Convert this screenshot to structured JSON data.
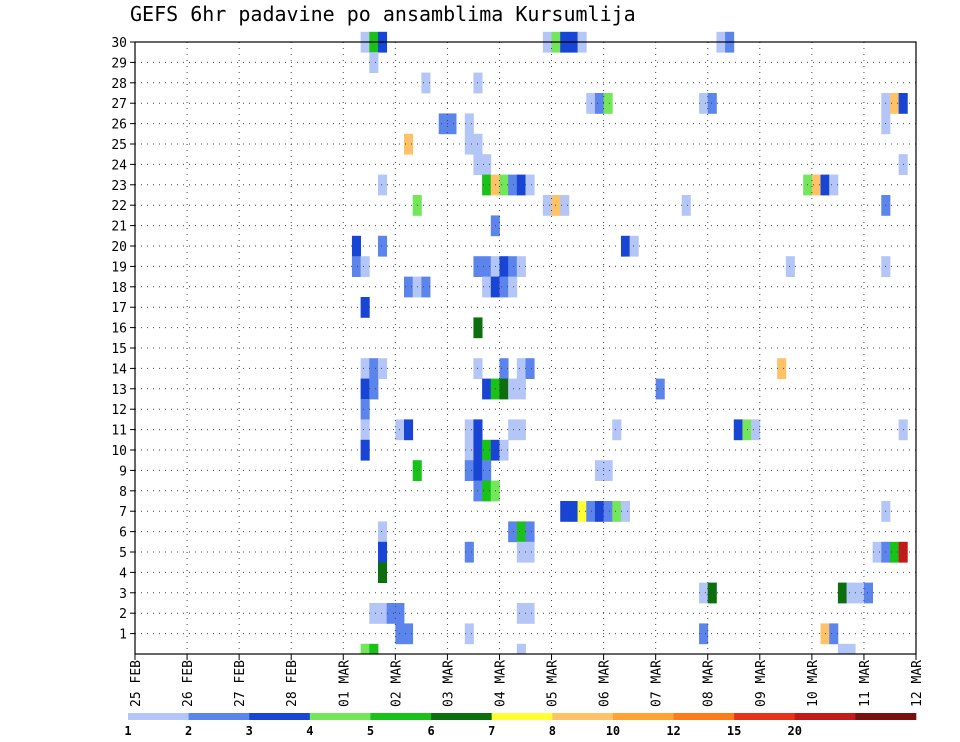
{
  "chart_data": {
    "type": "heatmap",
    "title": "GEFS 6hr padavine po ansamblima Kursumlija",
    "xlabel": "",
    "ylabel": "",
    "x_tick_labels": [
      "25 FEB",
      "26 FEB",
      "27 FEB",
      "28 FEB",
      "01 MAR",
      "02 MAR",
      "03 MAR",
      "04 MAR",
      "05 MAR",
      "06 MAR",
      "07 MAR",
      "08 MAR",
      "09 MAR",
      "10 MAR",
      "11 MAR",
      "12 MAR"
    ],
    "y_tick_labels": [
      "1",
      "2",
      "3",
      "4",
      "5",
      "6",
      "7",
      "8",
      "9",
      "10",
      "11",
      "12",
      "13",
      "14",
      "15",
      "16",
      "17",
      "18",
      "19",
      "20",
      "21",
      "22",
      "23",
      "24",
      "25",
      "26",
      "27",
      "28",
      "29",
      "30"
    ],
    "ylim": [
      0,
      30
    ],
    "grid": true,
    "legend": {
      "placement": "bottom",
      "labels": [
        "1",
        "2",
        "3",
        "4",
        "5",
        "6",
        "7",
        "8",
        "10",
        "12",
        "15",
        "20"
      ],
      "colors": [
        "#b3c6f7",
        "#5b85ec",
        "#1945d6",
        "#73e65a",
        "#19c219",
        "#0d6e0d",
        "#ffff33",
        "#ffc266",
        "#ffa333",
        "#ff7a1a",
        "#e63319",
        "#c21919",
        "#7a0f0f"
      ]
    },
    "note_units": "mm per 6h",
    "cells": [
      {
        "m": 30,
        "s": [
          [
            26,
            1
          ],
          [
            27,
            5
          ],
          [
            28,
            3
          ],
          [
            47,
            1
          ],
          [
            48,
            4
          ],
          [
            49,
            3
          ],
          [
            50,
            3
          ],
          [
            51,
            1
          ],
          [
            67,
            1
          ],
          [
            68,
            2
          ]
        ]
      },
      {
        "m": 29,
        "s": [
          [
            27,
            1
          ]
        ]
      },
      {
        "m": 28,
        "s": [
          [
            33,
            1
          ],
          [
            39,
            1
          ]
        ]
      },
      {
        "m": 27,
        "s": [
          [
            52,
            1
          ],
          [
            53,
            2
          ],
          [
            54,
            4
          ],
          [
            65,
            1
          ],
          [
            66,
            2
          ],
          [
            86,
            1
          ],
          [
            87,
            8
          ],
          [
            88,
            3
          ]
        ]
      },
      {
        "m": 26,
        "s": [
          [
            35,
            2
          ],
          [
            36,
            2
          ],
          [
            38,
            1
          ],
          [
            86,
            1
          ]
        ]
      },
      {
        "m": 25,
        "s": [
          [
            31,
            8
          ],
          [
            38,
            1
          ],
          [
            39,
            1
          ]
        ]
      },
      {
        "m": 24,
        "s": [
          [
            39,
            1
          ],
          [
            40,
            1
          ],
          [
            88,
            1
          ]
        ]
      },
      {
        "m": 23,
        "s": [
          [
            28,
            1
          ],
          [
            40,
            5
          ],
          [
            41,
            8
          ],
          [
            42,
            4
          ],
          [
            43,
            2
          ],
          [
            44,
            3
          ],
          [
            45,
            1
          ],
          [
            77,
            4
          ],
          [
            78,
            8
          ],
          [
            79,
            3
          ],
          [
            80,
            1
          ]
        ]
      },
      {
        "m": 22,
        "s": [
          [
            32,
            4
          ],
          [
            47,
            1
          ],
          [
            48,
            8
          ],
          [
            49,
            1
          ],
          [
            63,
            1
          ],
          [
            86,
            2
          ]
        ]
      },
      {
        "m": 21,
        "s": [
          [
            41,
            2
          ]
        ]
      },
      {
        "m": 20,
        "s": [
          [
            25,
            3
          ],
          [
            28,
            2
          ],
          [
            56,
            3
          ],
          [
            57,
            1
          ]
        ]
      },
      {
        "m": 19,
        "s": [
          [
            25,
            2
          ],
          [
            26,
            1
          ],
          [
            39,
            2
          ],
          [
            40,
            2
          ],
          [
            41,
            1
          ],
          [
            42,
            3
          ],
          [
            43,
            2
          ],
          [
            44,
            1
          ],
          [
            75,
            1
          ],
          [
            86,
            1
          ]
        ]
      },
      {
        "m": 18,
        "s": [
          [
            31,
            2
          ],
          [
            32,
            1
          ],
          [
            33,
            2
          ],
          [
            40,
            1
          ],
          [
            41,
            3
          ],
          [
            42,
            2
          ],
          [
            43,
            1
          ]
        ]
      },
      {
        "m": 17,
        "s": [
          [
            26,
            3
          ]
        ]
      },
      {
        "m": 16,
        "s": [
          [
            39,
            6
          ]
        ]
      },
      {
        "m": 14,
        "s": [
          [
            26,
            1
          ],
          [
            27,
            2
          ],
          [
            28,
            1
          ],
          [
            39,
            1
          ],
          [
            42,
            2
          ],
          [
            44,
            1
          ],
          [
            45,
            2
          ],
          [
            74,
            8
          ]
        ]
      },
      {
        "m": 13,
        "s": [
          [
            26,
            3
          ],
          [
            27,
            2
          ],
          [
            40,
            3
          ],
          [
            41,
            5
          ],
          [
            42,
            6
          ],
          [
            43,
            1
          ],
          [
            44,
            1
          ],
          [
            60,
            2
          ]
        ]
      },
      {
        "m": 12,
        "s": [
          [
            26,
            2
          ]
        ]
      },
      {
        "m": 11,
        "s": [
          [
            26,
            1
          ],
          [
            30,
            1
          ],
          [
            31,
            3
          ],
          [
            38,
            1
          ],
          [
            39,
            3
          ],
          [
            43,
            1
          ],
          [
            44,
            1
          ],
          [
            55,
            1
          ],
          [
            69,
            3
          ],
          [
            70,
            4
          ],
          [
            71,
            1
          ],
          [
            88,
            1
          ]
        ]
      },
      {
        "m": 10,
        "s": [
          [
            26,
            3
          ],
          [
            38,
            1
          ],
          [
            39,
            3
          ],
          [
            40,
            5
          ],
          [
            41,
            3
          ],
          [
            42,
            1
          ]
        ]
      },
      {
        "m": 9,
        "s": [
          [
            32,
            5
          ],
          [
            38,
            2
          ],
          [
            39,
            3
          ],
          [
            40,
            2
          ],
          [
            53,
            1
          ],
          [
            54,
            1
          ]
        ]
      },
      {
        "m": 8,
        "s": [
          [
            39,
            2
          ],
          [
            40,
            5
          ],
          [
            41,
            4
          ]
        ]
      },
      {
        "m": 7,
        "s": [
          [
            49,
            3
          ],
          [
            50,
            3
          ],
          [
            51,
            7
          ],
          [
            52,
            2
          ],
          [
            53,
            3
          ],
          [
            54,
            2
          ],
          [
            55,
            4
          ],
          [
            56,
            1
          ],
          [
            86,
            1
          ]
        ]
      },
      {
        "m": 6,
        "s": [
          [
            28,
            1
          ],
          [
            43,
            2
          ],
          [
            44,
            5
          ],
          [
            45,
            2
          ]
        ]
      },
      {
        "m": 5,
        "s": [
          [
            28,
            3
          ],
          [
            38,
            2
          ],
          [
            44,
            1
          ],
          [
            45,
            1
          ],
          [
            85,
            1
          ],
          [
            86,
            2
          ],
          [
            87,
            5
          ],
          [
            88,
            12
          ]
        ]
      },
      {
        "m": 4,
        "s": [
          [
            28,
            6
          ]
        ]
      },
      {
        "m": 3,
        "s": [
          [
            65,
            1
          ],
          [
            66,
            6
          ],
          [
            81,
            6
          ],
          [
            82,
            1
          ],
          [
            83,
            1
          ],
          [
            84,
            2
          ]
        ]
      },
      {
        "m": 2,
        "s": [
          [
            27,
            1
          ],
          [
            28,
            1
          ],
          [
            29,
            2
          ],
          [
            30,
            2
          ],
          [
            44,
            1
          ],
          [
            45,
            1
          ]
        ]
      },
      {
        "m": 1,
        "s": [
          [
            30,
            2
          ],
          [
            31,
            2
          ],
          [
            38,
            1
          ],
          [
            65,
            2
          ],
          [
            79,
            8
          ],
          [
            80,
            2
          ]
        ]
      },
      {
        "m": 0,
        "s": [
          [
            26,
            4
          ],
          [
            27,
            5
          ],
          [
            44,
            1
          ],
          [
            81,
            1
          ],
          [
            82,
            1
          ]
        ]
      }
    ]
  }
}
